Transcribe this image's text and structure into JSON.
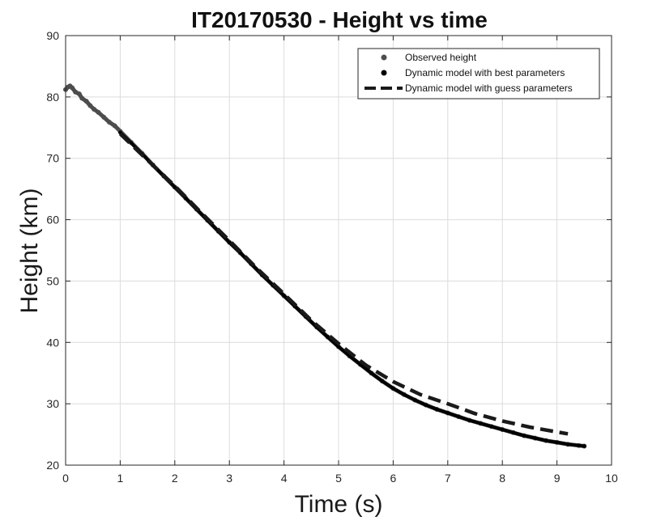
{
  "chart_data": {
    "type": "line",
    "title": "IT20170530 - Height vs time",
    "xlabel": "Time (s)",
    "ylabel": "Height (km)",
    "xlim": [
      0,
      10
    ],
    "ylim": [
      20,
      90
    ],
    "xticks": [
      0,
      1,
      2,
      3,
      4,
      5,
      6,
      7,
      8,
      9,
      10
    ],
    "yticks": [
      20,
      30,
      40,
      50,
      60,
      70,
      80,
      90
    ],
    "grid": true,
    "legend_position": "top-right",
    "series": [
      {
        "name": "Observed height",
        "style": "scatter",
        "color": "#4d4d4d",
        "x": [
          0.0,
          0.04,
          0.08,
          0.12,
          0.18,
          0.25,
          0.3,
          0.38,
          0.45,
          0.52,
          0.6,
          0.7,
          0.8,
          0.9,
          1.0,
          1.2,
          1.4,
          1.6,
          1.8,
          2.0,
          2.2,
          2.4,
          2.6,
          2.8,
          3.0,
          3.2,
          3.4,
          3.6,
          3.8,
          4.0,
          4.2,
          4.4,
          4.6,
          4.8,
          5.0,
          5.2,
          5.4,
          5.6,
          5.8,
          6.0,
          6.2,
          6.4,
          6.6,
          6.8,
          7.0,
          7.2,
          7.4,
          7.6,
          7.8,
          8.0,
          8.2,
          8.4,
          8.6,
          8.8,
          9.0,
          9.2,
          9.4,
          9.5
        ],
        "y": [
          81.2,
          81.6,
          81.8,
          81.5,
          80.8,
          80.5,
          79.8,
          79.3,
          78.6,
          78.0,
          77.5,
          76.7,
          75.9,
          75.3,
          74.4,
          72.6,
          70.8,
          68.9,
          67.1,
          65.3,
          63.5,
          61.7,
          59.9,
          58.1,
          56.3,
          54.6,
          52.8,
          51.0,
          49.3,
          47.6,
          45.9,
          44.2,
          42.5,
          40.9,
          39.3,
          37.8,
          36.4,
          35.0,
          33.7,
          32.5,
          31.5,
          30.6,
          29.8,
          29.1,
          28.5,
          27.9,
          27.3,
          26.8,
          26.3,
          25.8,
          25.3,
          24.8,
          24.4,
          24.0,
          23.7,
          23.4,
          23.2,
          23.1
        ]
      },
      {
        "name": "Dynamic model with best parameters",
        "style": "scatter",
        "color": "#000000",
        "x": [
          1.0,
          1.2,
          1.4,
          1.6,
          1.8,
          2.0,
          2.2,
          2.4,
          2.6,
          2.8,
          3.0,
          3.2,
          3.4,
          3.6,
          3.8,
          4.0,
          4.2,
          4.4,
          4.6,
          4.8,
          5.0,
          5.2,
          5.4,
          5.6,
          5.8,
          6.0,
          6.2,
          6.4,
          6.6,
          6.8,
          7.0,
          7.2,
          7.4,
          7.6,
          7.8,
          8.0,
          8.2,
          8.4,
          8.6,
          8.8,
          9.0,
          9.2,
          9.5
        ],
        "y": [
          74.2,
          72.5,
          70.7,
          68.9,
          67.1,
          65.3,
          63.5,
          61.7,
          59.9,
          58.1,
          56.3,
          54.6,
          52.8,
          51.0,
          49.3,
          47.6,
          45.9,
          44.2,
          42.5,
          40.9,
          39.3,
          37.8,
          36.4,
          35.0,
          33.7,
          32.5,
          31.5,
          30.6,
          29.8,
          29.1,
          28.5,
          27.9,
          27.3,
          26.8,
          26.3,
          25.8,
          25.3,
          24.8,
          24.4,
          24.0,
          23.7,
          23.4,
          23.1
        ]
      },
      {
        "name": "Dynamic model with guess parameters",
        "style": "dashed",
        "color": "#1a1a1a",
        "x": [
          1.0,
          1.5,
          2.0,
          2.5,
          3.0,
          3.5,
          4.0,
          4.5,
          5.0,
          5.5,
          6.0,
          6.5,
          7.0,
          7.5,
          8.0,
          8.5,
          9.0,
          9.2
        ],
        "y": [
          74.0,
          69.7,
          65.5,
          61.0,
          56.6,
          52.1,
          47.9,
          43.6,
          39.8,
          36.3,
          33.6,
          31.5,
          30.0,
          28.4,
          27.2,
          26.2,
          25.4,
          25.1
        ]
      }
    ]
  }
}
